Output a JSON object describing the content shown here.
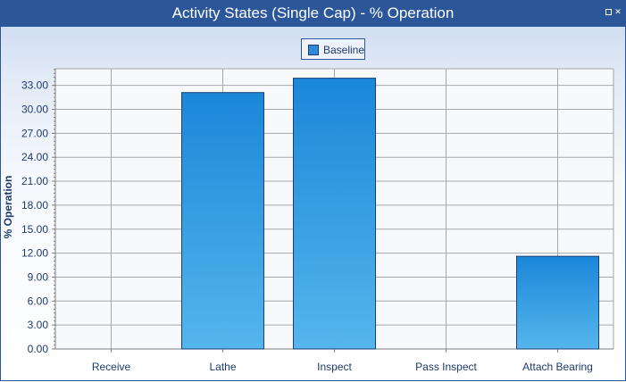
{
  "window": {
    "title": "Activity States (Single Cap) - % Operation",
    "restore_glyph": "",
    "close_glyph": "✕"
  },
  "legend": {
    "label": "Baseline"
  },
  "colors": {
    "bar_top": "#1b87d9",
    "bar_bottom": "#55b6ec",
    "bar_border": "#1b3f74",
    "grid": "#a7a7a7",
    "axis": "#7f7f7f",
    "text": "#1e3a6e",
    "title_bar": "#2b579a"
  },
  "chart_data": {
    "type": "bar",
    "title": "Activity States (Single Cap) - % Operation",
    "xlabel": "",
    "ylabel": "% Operation",
    "categories": [
      "Receive",
      "Lathe",
      "Inspect",
      "Pass Inspect",
      "Attach Bearing"
    ],
    "series": [
      {
        "name": "Baseline",
        "values": [
          0,
          32.1,
          33.9,
          0,
          11.6
        ]
      }
    ],
    "ylim": [
      0,
      35
    ],
    "yticks": [
      "0.00",
      "3.00",
      "6.00",
      "9.00",
      "12.00",
      "15.00",
      "18.00",
      "21.00",
      "24.00",
      "27.00",
      "30.00",
      "33.00"
    ],
    "grid": true,
    "legend_position": "top-center"
  }
}
